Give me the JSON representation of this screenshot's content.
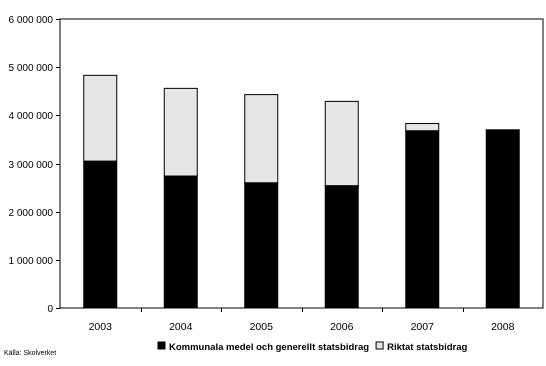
{
  "chart_data": {
    "type": "bar",
    "stacked": true,
    "categories": [
      "2003",
      "2004",
      "2005",
      "2006",
      "2007",
      "2008"
    ],
    "series": [
      {
        "name": "Kommunala medel och generellt statsbidrag",
        "color": "#000000",
        "values": [
          3050000,
          2740000,
          2600000,
          2540000,
          3680000,
          3700000
        ]
      },
      {
        "name": "Riktat statsbidrag",
        "color": "#e6e6e6",
        "values": [
          1780000,
          1820000,
          1830000,
          1750000,
          150000,
          0
        ]
      }
    ],
    "ylim": [
      0,
      6000000
    ],
    "y_ticks": [
      0,
      1000000,
      2000000,
      3000000,
      4000000,
      5000000,
      6000000
    ],
    "y_tick_labels": [
      "0",
      "1 000 000",
      "2 000 000",
      "3 000 000",
      "4 000 000",
      "5 000 000",
      "6 000 000"
    ],
    "title": "",
    "xlabel": "",
    "ylabel": "",
    "grid": false,
    "legend_position": "bottom",
    "source": "Källa: Skolverket"
  }
}
